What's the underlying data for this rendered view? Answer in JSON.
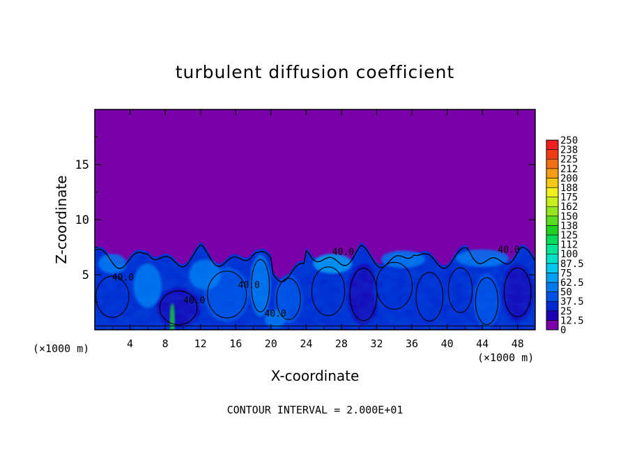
{
  "chart_data": {
    "type": "heatmap",
    "title": "turbulent diffusion coefficient",
    "xlabel": "X-coordinate",
    "ylabel": "Z-coordinate",
    "x_unit_left": "(×1000 m)",
    "x_unit_right": "(×1000 m)",
    "xlim": [
      0,
      50
    ],
    "ylim": [
      0,
      20
    ],
    "x_ticks": [
      4,
      8,
      12,
      16,
      20,
      24,
      28,
      32,
      36,
      40,
      44,
      48
    ],
    "y_ticks": [
      5,
      10,
      15
    ],
    "contour_interval_text": "CONTOUR INTERVAL = 2.000E+01",
    "contour_labels": [
      {
        "text": "40.0",
        "x": 3.2,
        "z": 4.5
      },
      {
        "text": "40.0",
        "x": 11.3,
        "z": 2.4
      },
      {
        "text": "40.0",
        "x": 17.5,
        "z": 3.8
      },
      {
        "text": "40.0",
        "x": 20.5,
        "z": 1.2
      },
      {
        "text": "40.0",
        "x": 28.2,
        "z": 6.8
      },
      {
        "text": "40.0",
        "x": 47.0,
        "z": 7.0
      }
    ],
    "colorbar": {
      "min": 0,
      "max": 250,
      "levels": [
        "0",
        "12.5",
        "25",
        "37.5",
        "50",
        "62.5",
        "75",
        "87.5",
        "100",
        "112",
        "125",
        "138",
        "150",
        "162",
        "175",
        "188",
        "200",
        "212",
        "225",
        "238",
        "250"
      ],
      "colors": [
        "#7a00a8",
        "#1e00b4",
        "#0028d0",
        "#0050e6",
        "#0078f0",
        "#00a0f5",
        "#00c8f0",
        "#00e0c8",
        "#00e696",
        "#00dc5a",
        "#1ed21e",
        "#5adc1e",
        "#96e61e",
        "#c8f01e",
        "#f0f01e",
        "#f5c814",
        "#f59b14",
        "#f06e14",
        "#f03c14",
        "#f01e1e",
        "#f07878"
      ]
    },
    "field_description_values": {
      "background_value": 0,
      "boundary_layer_top_z": 7.5,
      "typical_inner_value": 30
    }
  }
}
